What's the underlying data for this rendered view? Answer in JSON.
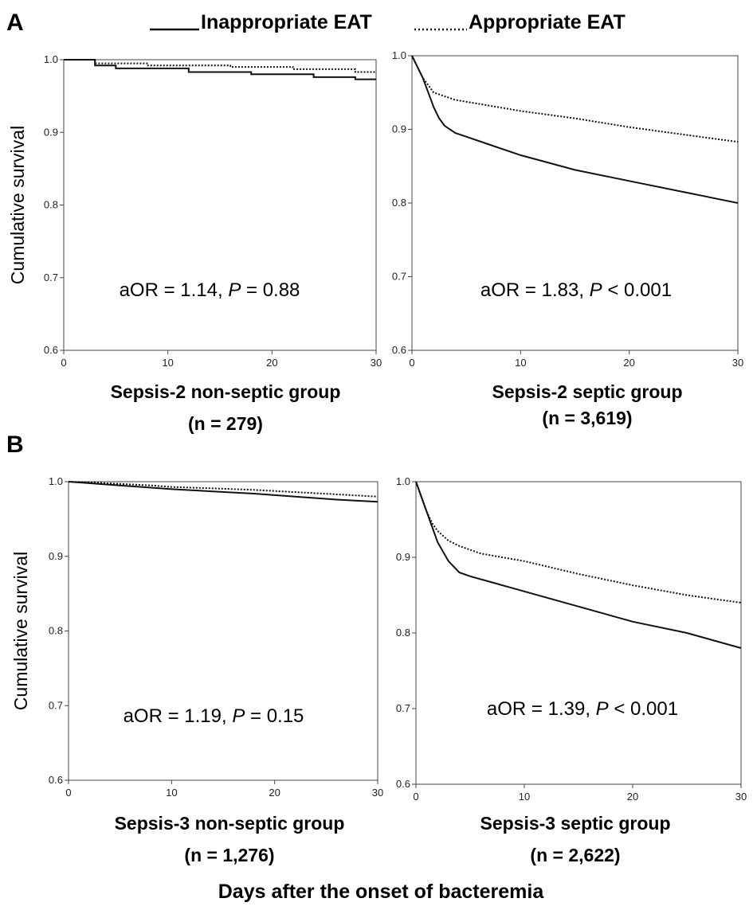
{
  "figure": {
    "legend": {
      "solid_label": "Inappropriate EAT",
      "dotted_label": "Appropriate EAT"
    },
    "panel_labels": [
      "A",
      "B"
    ],
    "common_xlabel": "Days after the onset of bacteremia",
    "colors": {
      "line": "#111111",
      "axis": "#444444",
      "background": "#ffffff"
    }
  },
  "chart_data": [
    {
      "type": "line",
      "panel": "A",
      "title": "Sepsis-2 non-septic group",
      "subtitle": "(n = 279)",
      "ylabel": "Cumulative survival",
      "xlabel": "Days after the onset of bacteremia",
      "xlim": [
        0,
        30
      ],
      "ylim": [
        0.6,
        1.0
      ],
      "xticks": [
        0,
        10,
        20,
        30
      ],
      "xtick_labels": [
        "0",
        "10",
        "20",
        "30"
      ],
      "yticks": [
        0.6,
        0.7,
        0.8,
        0.9,
        1.0
      ],
      "ytick_labels": [
        "0.6",
        "0.7",
        "0.8",
        "0.9",
        "1.0"
      ],
      "annotation": {
        "prefix": "aOR = 1.14, ",
        "p_symbol": "P",
        "suffix": " = 0.88"
      },
      "series": [
        {
          "name": "Inappropriate EAT",
          "style": "solid",
          "x": [
            0,
            3,
            3,
            5,
            5,
            12,
            12,
            18,
            18,
            24,
            24,
            28,
            28,
            30
          ],
          "y": [
            1.0,
            1.0,
            0.992,
            0.992,
            0.988,
            0.988,
            0.983,
            0.983,
            0.98,
            0.98,
            0.976,
            0.976,
            0.973,
            0.973
          ]
        },
        {
          "name": "Appropriate EAT",
          "style": "dotted",
          "x": [
            0,
            3,
            3,
            8,
            8,
            16,
            16,
            22,
            22,
            28,
            28,
            30
          ],
          "y": [
            1.0,
            1.0,
            0.995,
            0.995,
            0.992,
            0.992,
            0.99,
            0.99,
            0.987,
            0.987,
            0.983,
            0.983
          ]
        }
      ]
    },
    {
      "type": "line",
      "panel": "A",
      "title": "Sepsis-2 septic group",
      "subtitle": "(n = 3,619)",
      "ylabel": "",
      "xlabel": "Days after the onset of bacteremia",
      "xlim": [
        0,
        30
      ],
      "ylim": [
        0.6,
        1.0
      ],
      "xticks": [
        0,
        10,
        20,
        30
      ],
      "xtick_labels": [
        "0",
        "10",
        "20",
        "30"
      ],
      "yticks": [
        0.6,
        0.7,
        0.8,
        0.9,
        1.0
      ],
      "ytick_labels": [
        "0.6",
        "0.7",
        "0.8",
        "0.9",
        "1.0"
      ],
      "annotation": {
        "prefix": "aOR = 1.83, ",
        "p_symbol": "P",
        "suffix": " < 0.001"
      },
      "series": [
        {
          "name": "Inappropriate EAT",
          "style": "solid",
          "x": [
            0,
            0.5,
            1,
            1.5,
            2,
            2.5,
            3,
            4,
            5,
            7,
            10,
            15,
            20,
            25,
            30
          ],
          "y": [
            1.0,
            0.985,
            0.97,
            0.95,
            0.93,
            0.915,
            0.905,
            0.895,
            0.89,
            0.88,
            0.865,
            0.845,
            0.83,
            0.815,
            0.8
          ]
        },
        {
          "name": "Appropriate EAT",
          "style": "dotted",
          "x": [
            0,
            0.5,
            1,
            1.5,
            2,
            3,
            4,
            6,
            10,
            15,
            20,
            25,
            30
          ],
          "y": [
            1.0,
            0.985,
            0.97,
            0.96,
            0.95,
            0.945,
            0.94,
            0.935,
            0.925,
            0.915,
            0.903,
            0.893,
            0.883
          ]
        }
      ]
    },
    {
      "type": "line",
      "panel": "B",
      "title": "Sepsis-3 non-septic group",
      "subtitle": "(n = 1,276)",
      "ylabel": "Cumulative survival",
      "xlabel": "Days after the onset of bacteremia",
      "xlim": [
        0,
        30
      ],
      "ylim": [
        0.6,
        1.0
      ],
      "xticks": [
        0,
        10,
        20,
        30
      ],
      "xtick_labels": [
        "0",
        "10",
        "20",
        "30"
      ],
      "yticks": [
        0.6,
        0.7,
        0.8,
        0.9,
        1.0
      ],
      "ytick_labels": [
        "0.6",
        "0.7",
        "0.8",
        "0.9",
        "1.0"
      ],
      "annotation": {
        "prefix": "aOR = 1.19, ",
        "p_symbol": "P",
        "suffix": " = 0.15"
      },
      "series": [
        {
          "name": "Inappropriate EAT",
          "style": "solid",
          "x": [
            0,
            2,
            5,
            8,
            10,
            14,
            18,
            22,
            26,
            30
          ],
          "y": [
            1.0,
            0.998,
            0.995,
            0.992,
            0.99,
            0.987,
            0.984,
            0.98,
            0.976,
            0.973
          ]
        },
        {
          "name": "Appropriate EAT",
          "style": "dotted",
          "x": [
            0,
            2,
            5,
            8,
            10,
            14,
            18,
            22,
            26,
            30
          ],
          "y": [
            1.0,
            0.999,
            0.997,
            0.995,
            0.993,
            0.991,
            0.989,
            0.986,
            0.983,
            0.98
          ]
        }
      ]
    },
    {
      "type": "line",
      "panel": "B",
      "title": "Sepsis-3 septic group",
      "subtitle": "(n = 2,622)",
      "ylabel": "",
      "xlabel": "Days after the onset of bacteremia",
      "xlim": [
        0,
        30
      ],
      "ylim": [
        0.6,
        1.0
      ],
      "xticks": [
        0,
        10,
        20,
        30
      ],
      "xtick_labels": [
        "0",
        "10",
        "20",
        "30"
      ],
      "yticks": [
        0.6,
        0.7,
        0.8,
        0.9,
        1.0
      ],
      "ytick_labels": [
        "0.6",
        "0.7",
        "0.8",
        "0.9",
        "1.0"
      ],
      "annotation": {
        "prefix": "aOR = 1.39, ",
        "p_symbol": "P",
        "suffix": " < 0.001"
      },
      "series": [
        {
          "name": "Inappropriate EAT",
          "style": "solid",
          "x": [
            0,
            0.5,
            1,
            1.5,
            2,
            3,
            4,
            5,
            7,
            10,
            15,
            20,
            25,
            30
          ],
          "y": [
            1.0,
            0.98,
            0.96,
            0.94,
            0.92,
            0.895,
            0.88,
            0.875,
            0.867,
            0.855,
            0.835,
            0.815,
            0.8,
            0.78
          ]
        },
        {
          "name": "Appropriate EAT",
          "style": "dotted",
          "x": [
            0,
            0.5,
            1,
            1.5,
            2,
            3,
            4,
            6,
            10,
            15,
            20,
            25,
            30
          ],
          "y": [
            1.0,
            0.98,
            0.96,
            0.945,
            0.935,
            0.922,
            0.915,
            0.905,
            0.895,
            0.878,
            0.863,
            0.85,
            0.84
          ]
        }
      ]
    }
  ]
}
